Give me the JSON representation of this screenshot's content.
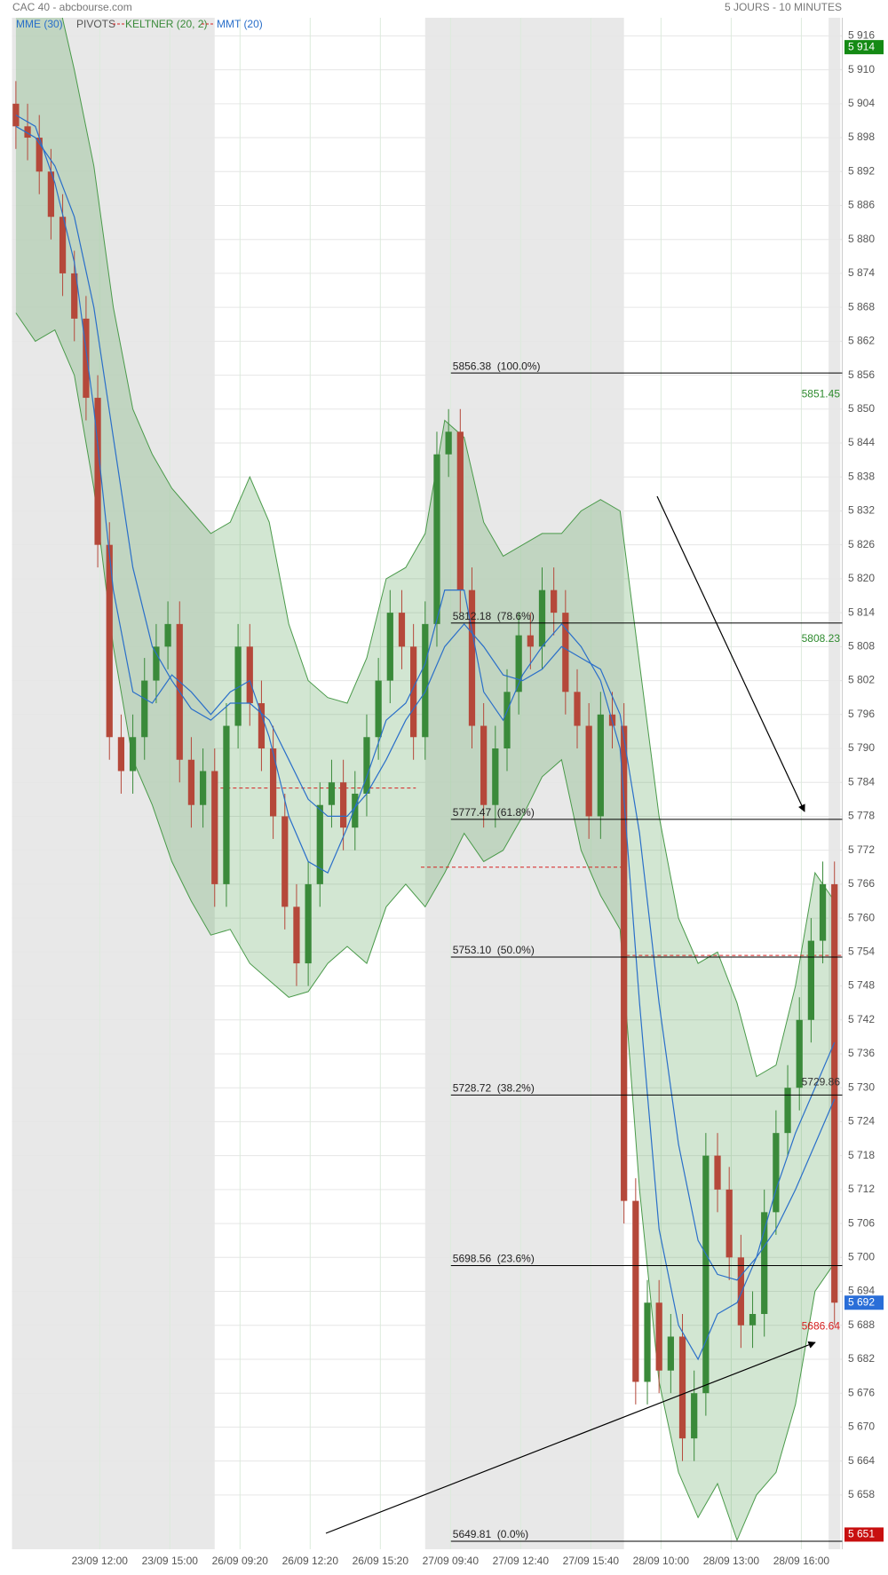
{
  "chart_data": {
    "type": "candlestick",
    "title": "CAC 40 - abcbourse.com",
    "subtitle": "5 JOURS - 10 MINUTES",
    "up_color": "#3a8a3a",
    "down_color": "#b5483a",
    "grid": true,
    "xlim": [
      0,
      213
    ],
    "ylim": [
      5648.4,
      5919.2
    ],
    "xticks": [
      {
        "value": 22.5,
        "label": "23/09 12:00"
      },
      {
        "value": 40.5,
        "label": "23/09 15:00"
      },
      {
        "value": 58.5,
        "label": "26/09 09:20"
      },
      {
        "value": 76.5,
        "label": "26/09 12:20"
      },
      {
        "value": 94.5,
        "label": "26/09 15:20"
      },
      {
        "value": 112.5,
        "label": "27/09 09:40"
      },
      {
        "value": 130.5,
        "label": "27/09 12:40"
      },
      {
        "value": 148.5,
        "label": "27/09 15:40"
      },
      {
        "value": 166.5,
        "label": "28/09 10:00"
      },
      {
        "value": 184.5,
        "label": "28/09 13:00"
      },
      {
        "value": 202.5,
        "label": "28/09 16:00"
      }
    ],
    "yticks": [
      {
        "value": 5916,
        "label": "5 916"
      },
      {
        "value": 5910,
        "label": "5 910"
      },
      {
        "value": 5904,
        "label": "5 904"
      },
      {
        "value": 5898,
        "label": "5 898"
      },
      {
        "value": 5892,
        "label": "5 892"
      },
      {
        "value": 5886,
        "label": "5 886"
      },
      {
        "value": 5880,
        "label": "5 880"
      },
      {
        "value": 5874,
        "label": "5 874"
      },
      {
        "value": 5868,
        "label": "5 868"
      },
      {
        "value": 5862,
        "label": "5 862"
      },
      {
        "value": 5856,
        "label": "5 856"
      },
      {
        "value": 5850,
        "label": "5 850"
      },
      {
        "value": 5844,
        "label": "5 844"
      },
      {
        "value": 5838,
        "label": "5 838"
      },
      {
        "value": 5832,
        "label": "5 832"
      },
      {
        "value": 5826,
        "label": "5 826"
      },
      {
        "value": 5820,
        "label": "5 820"
      },
      {
        "value": 5814,
        "label": "5 814"
      },
      {
        "value": 5808,
        "label": "5 808"
      },
      {
        "value": 5802,
        "label": "5 802"
      },
      {
        "value": 5796,
        "label": "5 796"
      },
      {
        "value": 5790,
        "label": "5 790"
      },
      {
        "value": 5784,
        "label": "5 784"
      },
      {
        "value": 5778,
        "label": "5 778"
      },
      {
        "value": 5772,
        "label": "5 772"
      },
      {
        "value": 5766,
        "label": "5 766"
      },
      {
        "value": 5760,
        "label": "5 760"
      },
      {
        "value": 5754,
        "label": "5 754"
      },
      {
        "value": 5748,
        "label": "5 748"
      },
      {
        "value": 5742,
        "label": "5 742"
      },
      {
        "value": 5736,
        "label": "5 736"
      },
      {
        "value": 5730,
        "label": "5 730"
      },
      {
        "value": 5724,
        "label": "5 724"
      },
      {
        "value": 5718,
        "label": "5 718"
      },
      {
        "value": 5712,
        "label": "5 712"
      },
      {
        "value": 5706,
        "label": "5 706"
      },
      {
        "value": 5700,
        "label": "5 700"
      },
      {
        "value": 5694,
        "label": "5 694"
      },
      {
        "value": 5688,
        "label": "5 688"
      },
      {
        "value": 5682,
        "label": "5 682"
      },
      {
        "value": 5676,
        "label": "5 676"
      },
      {
        "value": 5670,
        "label": "5 670"
      },
      {
        "value": 5664,
        "label": "5 664"
      },
      {
        "value": 5658,
        "label": "5 658"
      }
    ],
    "shaded_ranges": [
      [
        0,
        52
      ],
      [
        106,
        157
      ],
      [
        209.5,
        212.5
      ]
    ],
    "x": [
      1,
      4,
      7,
      10,
      13,
      16,
      19,
      22,
      25,
      28,
      31,
      34,
      37,
      40,
      43,
      46,
      49,
      52,
      55,
      58,
      61,
      64,
      67,
      70,
      73,
      76,
      79,
      82,
      85,
      88,
      91,
      94,
      97,
      100,
      103,
      106,
      109,
      112,
      115,
      118,
      121,
      124,
      127,
      130,
      133,
      136,
      139,
      142,
      145,
      148,
      151,
      154,
      157,
      160,
      163,
      166,
      169,
      172,
      175,
      178,
      181,
      184,
      187,
      190,
      193,
      196,
      199,
      202,
      205,
      208,
      211
    ],
    "open": [
      5904,
      5900,
      5898,
      5892,
      5884,
      5874,
      5866,
      5852,
      5826,
      5792,
      5786,
      5792,
      5802,
      5808,
      5812,
      5788,
      5780,
      5786,
      5766,
      5794,
      5808,
      5798,
      5790,
      5778,
      5762,
      5752,
      5766,
      5780,
      5784,
      5776,
      5782,
      5792,
      5802,
      5814,
      5808,
      5792,
      5812,
      5842,
      5846,
      5818,
      5794,
      5780,
      5790,
      5800,
      5810,
      5808,
      5818,
      5814,
      5800,
      5794,
      5778,
      5796,
      5794,
      5710,
      5678,
      5692,
      5680,
      5686,
      5668,
      5676,
      5718,
      5712,
      5700,
      5688,
      5690,
      5708,
      5722,
      5730,
      5742,
      5756,
      5766
    ],
    "high": [
      5908,
      5904,
      5902,
      5896,
      5888,
      5878,
      5870,
      5856,
      5830,
      5796,
      5796,
      5806,
      5812,
      5816,
      5816,
      5792,
      5790,
      5790,
      5798,
      5812,
      5812,
      5802,
      5794,
      5782,
      5766,
      5770,
      5784,
      5788,
      5788,
      5786,
      5796,
      5806,
      5818,
      5818,
      5812,
      5816,
      5846,
      5850,
      5850,
      5822,
      5798,
      5794,
      5804,
      5814,
      5814,
      5822,
      5822,
      5818,
      5804,
      5798,
      5800,
      5800,
      5798,
      5714,
      5696,
      5696,
      5690,
      5690,
      5680,
      5722,
      5722,
      5716,
      5704,
      5694,
      5712,
      5726,
      5734,
      5746,
      5760,
      5770,
      5770
    ],
    "low": [
      5896,
      5894,
      5888,
      5880,
      5870,
      5862,
      5848,
      5822,
      5788,
      5782,
      5782,
      5788,
      5798,
      5804,
      5784,
      5776,
      5776,
      5762,
      5762,
      5790,
      5794,
      5786,
      5774,
      5758,
      5748,
      5748,
      5762,
      5776,
      5772,
      5772,
      5778,
      5788,
      5798,
      5804,
      5788,
      5788,
      5808,
      5838,
      5814,
      5790,
      5776,
      5776,
      5786,
      5796,
      5804,
      5804,
      5810,
      5796,
      5790,
      5774,
      5774,
      5790,
      5706,
      5674,
      5674,
      5676,
      5676,
      5664,
      5664,
      5672,
      5708,
      5696,
      5684,
      5684,
      5686,
      5704,
      5718,
      5726,
      5738,
      5752,
      5688
    ],
    "close": [
      5900,
      5898,
      5892,
      5884,
      5874,
      5866,
      5852,
      5826,
      5792,
      5786,
      5792,
      5802,
      5808,
      5812,
      5788,
      5780,
      5786,
      5766,
      5794,
      5808,
      5798,
      5790,
      5778,
      5762,
      5752,
      5766,
      5780,
      5784,
      5776,
      5782,
      5792,
      5802,
      5814,
      5808,
      5792,
      5812,
      5842,
      5846,
      5818,
      5794,
      5780,
      5790,
      5800,
      5810,
      5808,
      5818,
      5814,
      5800,
      5794,
      5778,
      5796,
      5794,
      5710,
      5678,
      5692,
      5680,
      5686,
      5668,
      5676,
      5718,
      5712,
      5700,
      5688,
      5690,
      5708,
      5722,
      5730,
      5742,
      5756,
      5766,
      5692
    ],
    "keltner": {
      "name": "KELTNER (20, 2)",
      "color": "#4a9a4a",
      "x": [
        1,
        6,
        11,
        16,
        21,
        26,
        31,
        36,
        41,
        46,
        51,
        56,
        61,
        66,
        71,
        76,
        81,
        86,
        91,
        96,
        101,
        106,
        111,
        116,
        121,
        126,
        131,
        136,
        141,
        146,
        151,
        156,
        161,
        166,
        171,
        176,
        181,
        186,
        191,
        196,
        201,
        206,
        211
      ],
      "upper": [
        5928,
        5928,
        5925,
        5910,
        5893,
        5868,
        5850,
        5842,
        5836,
        5832,
        5828,
        5830,
        5838,
        5830,
        5812,
        5802,
        5799,
        5798,
        5806,
        5820,
        5822,
        5828,
        5848,
        5845,
        5830,
        5824,
        5826,
        5828,
        5828,
        5832,
        5834,
        5832,
        5805,
        5778,
        5760,
        5752,
        5754,
        5745,
        5732,
        5734,
        5748,
        5768,
        5763
      ],
      "lower": [
        5867,
        5862,
        5864,
        5856,
        5836,
        5808,
        5788,
        5780,
        5770,
        5763,
        5757,
        5758,
        5752,
        5749,
        5746,
        5747,
        5752,
        5755,
        5752,
        5762,
        5766,
        5762,
        5768,
        5775,
        5770,
        5772,
        5778,
        5785,
        5788,
        5772,
        5764,
        5758,
        5712,
        5678,
        5662,
        5654,
        5660,
        5650,
        5658,
        5662,
        5674,
        5694,
        5699
      ]
    },
    "series": [
      {
        "name": "MME (30)",
        "color": "#2a6fc9",
        "x": [
          1,
          6,
          11,
          16,
          21,
          26,
          31,
          36,
          41,
          46,
          51,
          56,
          61,
          66,
          71,
          76,
          81,
          86,
          91,
          96,
          101,
          106,
          111,
          116,
          121,
          126,
          131,
          136,
          141,
          146,
          151,
          156,
          161,
          166,
          171,
          176,
          181,
          186,
          191,
          196,
          201,
          206,
          211
        ],
        "values": [
          5900,
          5898,
          5893,
          5884,
          5868,
          5845,
          5822,
          5808,
          5802,
          5797,
          5795,
          5798,
          5798,
          5795,
          5788,
          5781,
          5778,
          5778,
          5782,
          5788,
          5795,
          5800,
          5808,
          5812,
          5808,
          5803,
          5802,
          5804,
          5808,
          5806,
          5804,
          5796,
          5775,
          5745,
          5720,
          5703,
          5697,
          5696,
          5700,
          5705,
          5712,
          5720,
          5728
        ]
      },
      {
        "name": "MMT (20)",
        "color": "#2a6fc9",
        "x": [
          1,
          6,
          11,
          16,
          21,
          26,
          31,
          36,
          41,
          46,
          51,
          56,
          61,
          66,
          71,
          76,
          81,
          86,
          91,
          96,
          101,
          106,
          111,
          116,
          121,
          126,
          131,
          136,
          141,
          146,
          151,
          156,
          161,
          166,
          171,
          176,
          181,
          186,
          191,
          196,
          201,
          206,
          211
        ],
        "values": [
          5902,
          5900,
          5890,
          5876,
          5850,
          5818,
          5800,
          5798,
          5803,
          5800,
          5796,
          5800,
          5802,
          5792,
          5778,
          5770,
          5768,
          5776,
          5785,
          5795,
          5798,
          5805,
          5818,
          5818,
          5800,
          5795,
          5803,
          5808,
          5812,
          5808,
          5802,
          5790,
          5745,
          5705,
          5688,
          5682,
          5690,
          5692,
          5700,
          5712,
          5722,
          5730,
          5738
        ]
      }
    ],
    "pivots": {
      "name": "PIVOTS",
      "color": "#d62020",
      "segments": [
        {
          "x": [
            53.5,
            103.6
          ],
          "value": 5783
        },
        {
          "x": [
            104.9,
            156.3
          ],
          "value": 5769
        },
        {
          "x": [
            157.6,
            213
          ],
          "value": 5753.4
        }
      ]
    },
    "fibonacci": {
      "x_start": 112.6,
      "levels": [
        {
          "value": 5856.38,
          "label": "5856.38  (100.0%)"
        },
        {
          "value": 5812.18,
          "label": "5812.18  (78.6%)"
        },
        {
          "value": 5777.47,
          "label": "5777.47  (61.8%)"
        },
        {
          "value": 5753.1,
          "label": "5753.10  (50.0%)"
        },
        {
          "value": 5728.72,
          "label": "5728.72  (38.2%)"
        },
        {
          "value": 5698.56,
          "label": "5698.56  (23.6%)"
        },
        {
          "value": 5649.81,
          "label": "5649.81  (0.0%)"
        }
      ]
    },
    "annotations": [
      {
        "value": 5851.45,
        "color": "#2e8b2e"
      },
      {
        "value": 5808.23,
        "color": "#2e8b2e"
      },
      {
        "value": 5729.86,
        "color": "#333333"
      },
      {
        "value": 5686.64,
        "color": "#d62020"
      }
    ],
    "price_badges": [
      {
        "value": 5914,
        "label": "5 914",
        "color": "#148a14"
      },
      {
        "value": 5692,
        "label": "5 692",
        "color": "#2a6ed8"
      },
      {
        "value": 5651,
        "label": "5 651",
        "color": "#c80f0f"
      }
    ]
  }
}
